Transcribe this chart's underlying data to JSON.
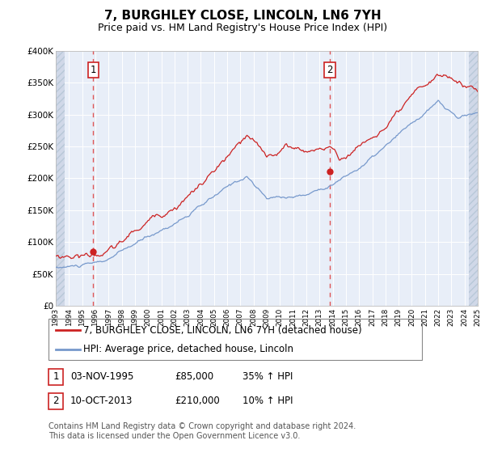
{
  "title": "7, BURGHLEY CLOSE, LINCOLN, LN6 7YH",
  "subtitle": "Price paid vs. HM Land Registry's House Price Index (HPI)",
  "ylim": [
    0,
    400000
  ],
  "yticks": [
    0,
    50000,
    100000,
    150000,
    200000,
    250000,
    300000,
    350000,
    400000
  ],
  "ytick_labels": [
    "£0",
    "£50K",
    "£100K",
    "£150K",
    "£200K",
    "£250K",
    "£300K",
    "£350K",
    "£400K"
  ],
  "hpi_color": "#7799cc",
  "property_color": "#cc2222",
  "sale1_date": 1995.84,
  "sale1_price": 85000,
  "sale2_date": 2013.77,
  "sale2_price": 210000,
  "dashed_line_color": "#dd4444",
  "chart_bg": "#e8eef8",
  "hatch_bg": "#d0d8e8",
  "legend_label1": "7, BURGHLEY CLOSE, LINCOLN, LN6 7YH (detached house)",
  "legend_label2": "HPI: Average price, detached house, Lincoln",
  "table_row1": [
    "1",
    "03-NOV-1995",
    "£85,000",
    "35% ↑ HPI"
  ],
  "table_row2": [
    "2",
    "10-OCT-2013",
    "£210,000",
    "10% ↑ HPI"
  ],
  "footer": "Contains HM Land Registry data © Crown copyright and database right 2024.\nThis data is licensed under the Open Government Licence v3.0.",
  "title_fontsize": 11,
  "subtitle_fontsize": 9,
  "tick_fontsize": 7.5,
  "legend_fontsize": 8.5,
  "table_fontsize": 8.5,
  "footer_fontsize": 7
}
